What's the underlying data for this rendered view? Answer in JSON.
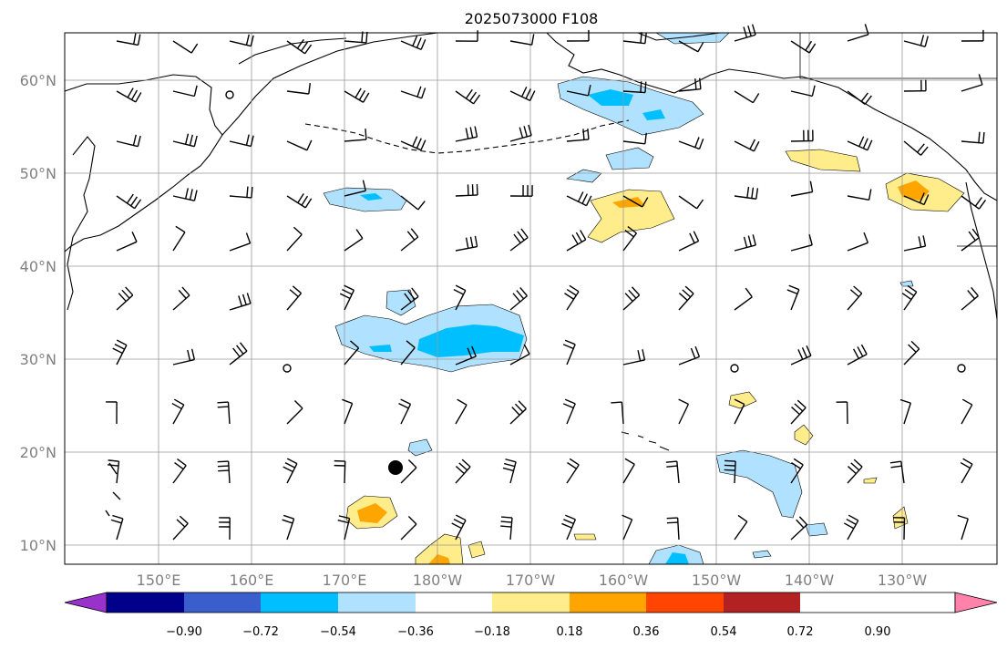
{
  "title": "2025073000 F108",
  "lat_labels": [
    "60°N",
    "50°N",
    "40°N",
    "30°N",
    "20°N",
    "10°N"
  ],
  "lon_labels": [
    "150°E",
    "160°E",
    "170°E",
    "180°W",
    "170°W",
    "160°W",
    "150°W",
    "140°W",
    "130°W"
  ],
  "colorbar": {
    "labels": [
      "−0.90",
      "−0.72",
      "−0.54",
      "−0.36",
      "−0.18",
      "0.18",
      "0.36",
      "0.54",
      "0.72",
      "0.90"
    ],
    "colors": [
      "#9932cc",
      "#00008b",
      "#3a5fcd",
      "#00bfff",
      "#b0e2ff",
      "#ffffff",
      "#ffec8b",
      "#ffa500",
      "#ff4500",
      "#b22222",
      "#ff82ab"
    ]
  },
  "fills": {
    "light_blue": "#b0e2ff",
    "blue": "#00bfff",
    "yellow": "#ffec8b",
    "orange": "#ffa500"
  }
}
